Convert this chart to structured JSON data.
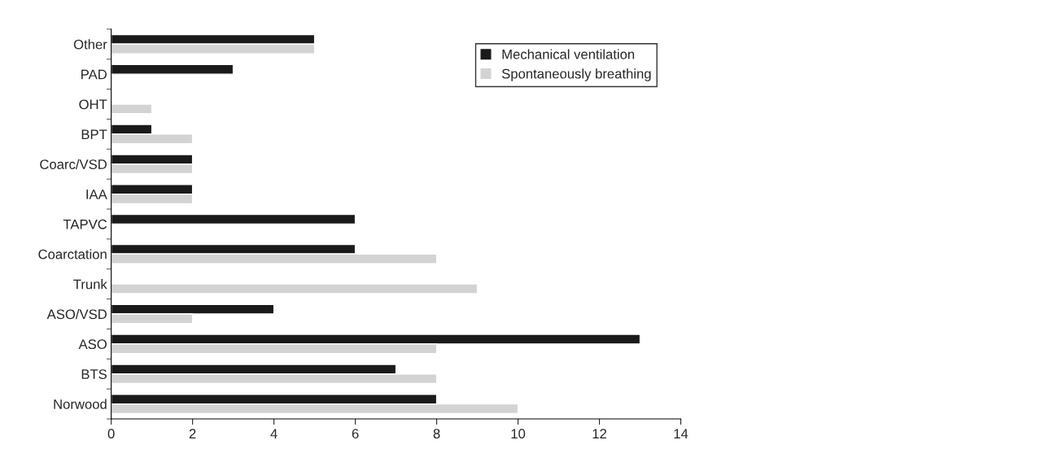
{
  "chart_data": {
    "type": "bar",
    "orientation": "horizontal",
    "categories": [
      "Other",
      "PAD",
      "OHT",
      "BPT",
      "Coarc/VSD",
      "IAA",
      "TAPVC",
      "Coarctation",
      "Trunk",
      "ASO/VSD",
      "ASO",
      "BTS",
      "Norwood"
    ],
    "series": [
      {
        "name": "Mechanical ventilation",
        "color": "#1a1a1a",
        "values": [
          5,
          3,
          null,
          1,
          2,
          2,
          6,
          6,
          null,
          4,
          13,
          7,
          8
        ]
      },
      {
        "name": "Spontaneously breathing",
        "color": "#d3d3d3",
        "values": [
          5,
          null,
          1,
          2,
          2,
          2,
          null,
          8,
          9,
          2,
          8,
          8,
          10
        ]
      }
    ],
    "xlim": [
      0,
      14
    ],
    "xticks": [
      0,
      2,
      4,
      6,
      8,
      10,
      12,
      14
    ],
    "grid": false,
    "legend": "top right"
  }
}
